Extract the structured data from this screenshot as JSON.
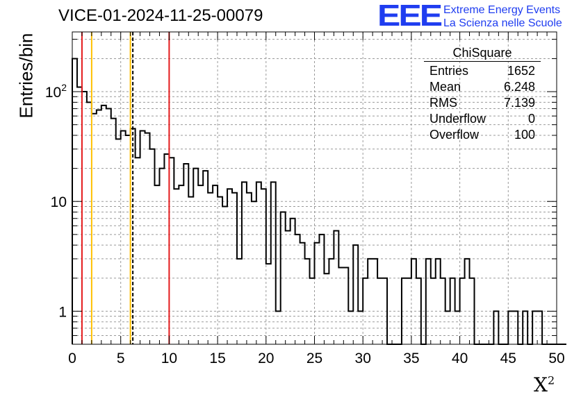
{
  "chart_data": {
    "type": "histogram",
    "title": "VICE-01-2024-11-25-00079",
    "xlabel": "X",
    "xlabel_sup": "2",
    "ylabel": "Entries/bin",
    "xlim": [
      0,
      50
    ],
    "ylim": [
      0.5,
      350
    ],
    "yscale": "log",
    "grid": true,
    "bin_width": 0.5,
    "values": [
      200,
      110,
      100,
      80,
      63,
      68,
      75,
      70,
      57,
      37,
      44,
      40,
      46,
      25,
      44,
      42,
      30,
      14,
      20,
      27,
      25,
      13,
      14,
      22,
      11,
      20,
      14,
      19,
      12,
      14,
      11,
      9,
      13,
      12,
      3,
      15,
      12,
      10,
      15,
      13,
      2.7,
      15,
      1,
      8,
      5.4,
      7,
      5,
      4.2,
      3,
      2,
      4.2,
      5,
      2.2,
      3,
      5.4,
      2.5,
      2.5,
      1,
      4,
      1,
      2,
      3,
      3,
      2,
      2,
      0,
      0,
      0,
      2,
      2,
      3,
      2,
      0,
      3,
      2,
      3,
      2,
      1,
      2,
      1,
      2,
      3,
      2,
      0,
      0,
      0,
      0,
      1,
      0,
      0,
      1,
      1,
      0,
      1,
      0,
      1,
      1,
      0,
      0,
      0,
      0,
      0
    ],
    "vlines": [
      {
        "x": 1,
        "color": "#e41a1c",
        "style": "solid"
      },
      {
        "x": 2,
        "color": "#ffc000",
        "style": "solid"
      },
      {
        "x": 6,
        "color": "#ffc000",
        "style": "solid"
      },
      {
        "x": 6.25,
        "color": "#000000",
        "style": "dashed"
      },
      {
        "x": 10,
        "color": "#e41a1c",
        "style": "solid"
      }
    ],
    "x_ticks": [
      "0",
      "5",
      "10",
      "15",
      "20",
      "25",
      "30",
      "35",
      "40",
      "45",
      "50"
    ],
    "y_ticks": [
      {
        "value": 1,
        "label": "1"
      },
      {
        "value": 10,
        "label": "10"
      },
      {
        "value": 100,
        "label": "10",
        "sup": "2"
      }
    ],
    "stats": {
      "title": "ChiSquare",
      "rows": [
        {
          "label": "Entries",
          "value": "1652"
        },
        {
          "label": "Mean",
          "value": "6.248"
        },
        {
          "label": "RMS",
          "value": "7.139"
        },
        {
          "label": "Underflow",
          "value": "0"
        },
        {
          "label": "Overflow",
          "value": "100"
        }
      ]
    }
  },
  "logo": {
    "text": "EEE",
    "line1": "Extreme Energy Events",
    "line2": "La Scienza nelle Scuole",
    "color": "#1f3df0"
  }
}
